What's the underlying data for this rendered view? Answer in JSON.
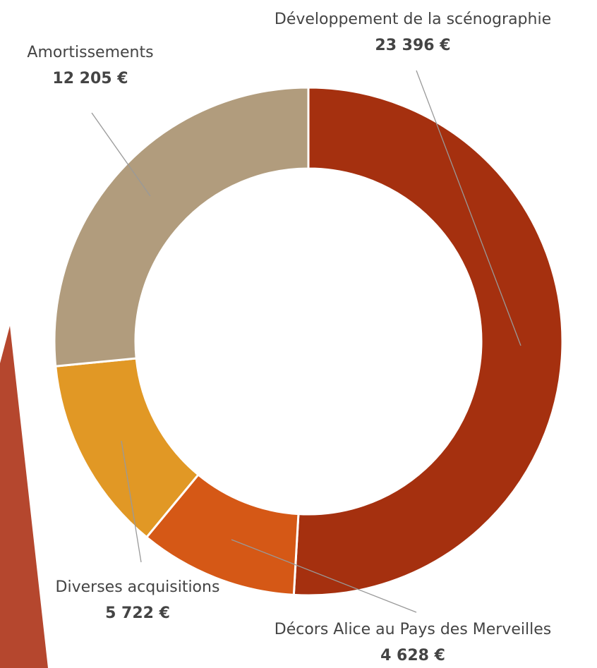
{
  "chart_data": {
    "type": "donut",
    "categories": [
      "Développement de la scénographie",
      "Décors Alice au Pays des Merveilles",
      "Diverses acquisitions",
      "Amortissements"
    ],
    "values": [
      23396,
      4628,
      5722,
      12205
    ],
    "value_labels": [
      "23 396 €",
      "4 628 €",
      "5 722 €",
      "12 205 €"
    ],
    "colors": [
      "#a5300f",
      "#d55816",
      "#e19825",
      "#b19c7d"
    ]
  }
}
